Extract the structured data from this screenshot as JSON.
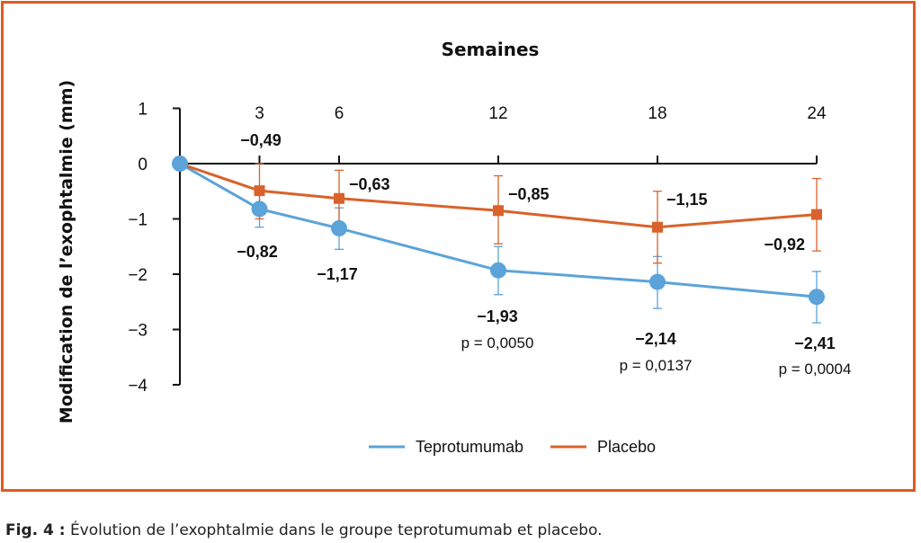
{
  "colors": {
    "teprotumumab": "#5ba3d9",
    "placebo": "#d9622b",
    "frame": "#e05a1e",
    "axis": "#111111"
  },
  "caption": {
    "label": "Fig. 4 :",
    "text": "Évolution de l’exophtalmie dans le groupe teprotumumab et placebo."
  },
  "chart_data": {
    "type": "line",
    "title": "Semaines",
    "ylabel": "Modification de l’exophtalmie (mm)",
    "xlabel": "",
    "x": [
      0,
      3,
      6,
      12,
      18,
      24
    ],
    "x_tick_labels": [
      "3",
      "6",
      "12",
      "18",
      "24"
    ],
    "ylim": [
      -4,
      1
    ],
    "y_ticks": [
      1,
      0,
      -1,
      -2,
      -3,
      -4
    ],
    "y_tick_labels": [
      "1",
      "0",
      "−1",
      "−2",
      "−3",
      "−4"
    ],
    "xaxis_position": "top",
    "grid": false,
    "legend_position": "bottom-center",
    "series": [
      {
        "name": "Teprotumumab",
        "marker": "circle",
        "values": [
          0,
          -0.82,
          -1.17,
          -1.93,
          -2.14,
          -2.41
        ],
        "err_low": [
          0,
          -1.15,
          -1.55,
          -2.37,
          -2.62,
          -2.88
        ],
        "err_high": [
          0,
          -0.47,
          -0.8,
          -1.5,
          -1.68,
          -1.95
        ],
        "labels": [
          "",
          "−0,82",
          "−1,17",
          "−1,93",
          "−2,14",
          "−2,41"
        ],
        "pvalues": [
          "",
          "",
          "",
          "p = 0,0050",
          "p = 0,0137",
          "p = 0,0004"
        ]
      },
      {
        "name": "Placebo",
        "marker": "square",
        "values": [
          0,
          -0.49,
          -0.63,
          -0.85,
          -1.15,
          -0.92
        ],
        "err_low": [
          0,
          -1.0,
          -1.12,
          -1.45,
          -1.8,
          -1.58
        ],
        "err_high": [
          0,
          0.0,
          -0.12,
          -0.22,
          -0.5,
          -0.27
        ],
        "labels": [
          "",
          "−0,49",
          "−0,63",
          "−0,85",
          "−1,15",
          "−0,92"
        ]
      }
    ]
  }
}
